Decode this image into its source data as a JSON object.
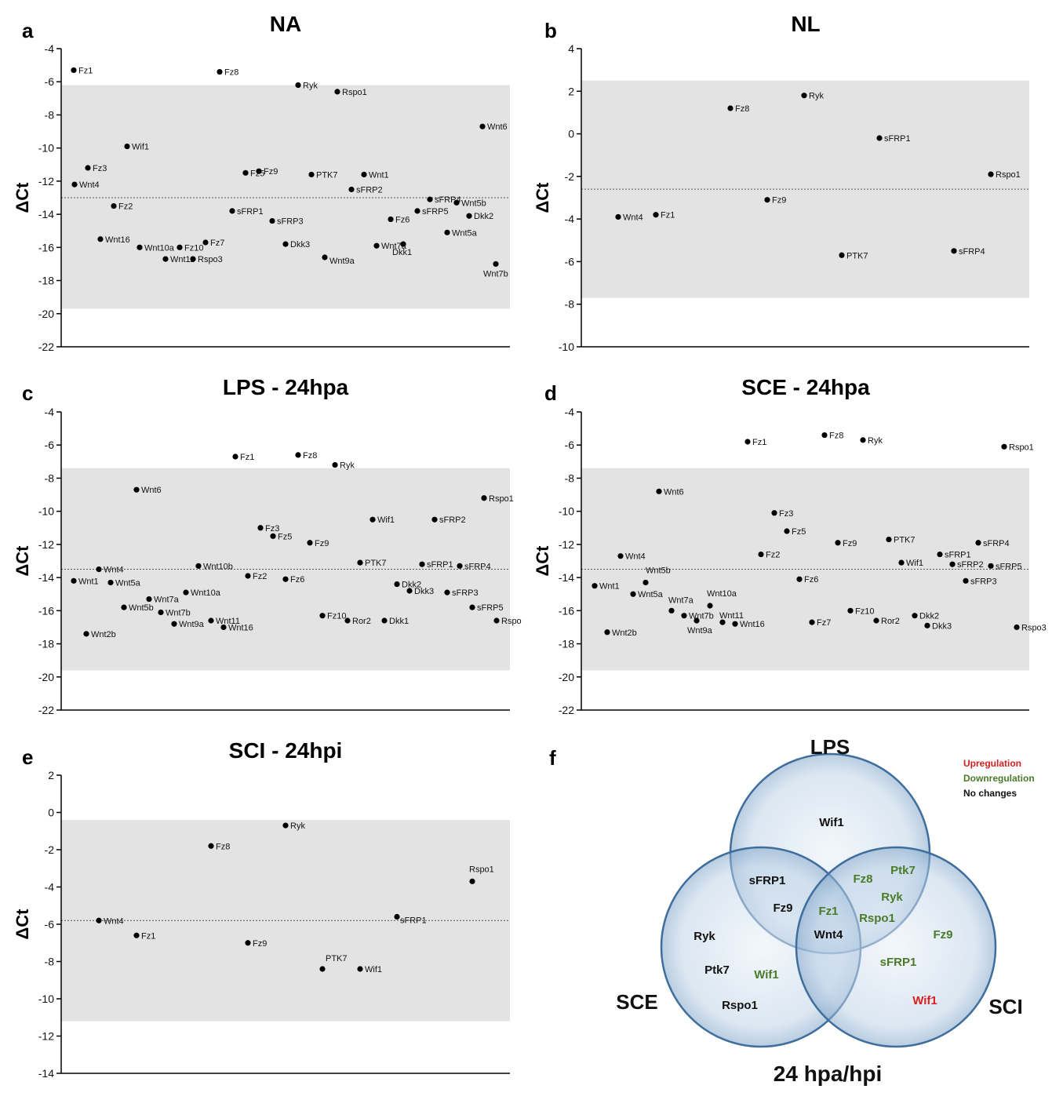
{
  "chart_data": [
    {
      "type": "scatter",
      "panel": "a",
      "title": "NA",
      "ylabel": "ΔCt",
      "ylim": [
        -22,
        -4
      ],
      "yticks": [
        -4,
        -6,
        -8,
        -10,
        -12,
        -14,
        -16,
        -18,
        -20,
        -22
      ],
      "band": [
        -19.7,
        -6.2
      ],
      "mean": -13.0,
      "points": [
        {
          "label": "Fz1",
          "y": -5.3
        },
        {
          "label": "Fz8",
          "y": -5.4
        },
        {
          "label": "Ryk",
          "y": -6.2
        },
        {
          "label": "Rspo1",
          "y": -6.6
        },
        {
          "label": "Wnt6",
          "y": -8.7
        },
        {
          "label": "Wif1",
          "y": -9.9
        },
        {
          "label": "Wnt1",
          "y": -11.6
        },
        {
          "label": "Wnt4",
          "y": -12.2
        },
        {
          "label": "Fz3",
          "y": -11.2
        },
        {
          "label": "Fz5",
          "y": -11.5
        },
        {
          "label": "Fz9",
          "y": -11.4
        },
        {
          "label": "PTK7",
          "y": -11.6
        },
        {
          "label": "sFRP2",
          "y": -12.5
        },
        {
          "label": "sFRP4",
          "y": -13.1
        },
        {
          "label": "Wnt5b",
          "y": -13.3
        },
        {
          "label": "Fz2",
          "y": -13.5
        },
        {
          "label": "sFRP1",
          "y": -13.8
        },
        {
          "label": "sFRP5",
          "y": -13.8
        },
        {
          "label": "Dkk2",
          "y": -14.1
        },
        {
          "label": "Fz6",
          "y": -14.3
        },
        {
          "label": "sFRP3",
          "y": -14.4
        },
        {
          "label": "Wnt5a",
          "y": -15.1
        },
        {
          "label": "Wnt16",
          "y": -15.5
        },
        {
          "label": "Fz7",
          "y": -15.7
        },
        {
          "label": "Dkk3",
          "y": -15.8
        },
        {
          "label": "Dkk1",
          "y": -15.8
        },
        {
          "label": "Wnt7a",
          "y": -15.9
        },
        {
          "label": "Wnt10a",
          "y": -16.0
        },
        {
          "label": "Fz10",
          "y": -16.0
        },
        {
          "label": "Wnt9a",
          "y": -16.6
        },
        {
          "label": "Wnt11",
          "y": -16.7
        },
        {
          "label": "Rspo3",
          "y": -16.7
        },
        {
          "label": "Wnt7b",
          "y": -17.0
        }
      ]
    },
    {
      "type": "scatter",
      "panel": "b",
      "title": "NL",
      "ylabel": "ΔCt",
      "ylim": [
        -10,
        4
      ],
      "yticks": [
        4,
        2,
        0,
        -2,
        -4,
        -6,
        -8,
        -10
      ],
      "band": [
        -7.7,
        2.5
      ],
      "mean": -2.6,
      "points": [
        {
          "label": "Ryk",
          "y": 1.8
        },
        {
          "label": "Fz8",
          "y": 1.2
        },
        {
          "label": "sFRP1",
          "y": -0.2
        },
        {
          "label": "Rspo1",
          "y": -1.9
        },
        {
          "label": "Fz9",
          "y": -3.1
        },
        {
          "label": "Wnt4",
          "y": -3.9
        },
        {
          "label": "Fz1",
          "y": -3.8
        },
        {
          "label": "PTK7",
          "y": -5.7
        },
        {
          "label": "sFRP4",
          "y": -5.5
        }
      ]
    },
    {
      "type": "scatter",
      "panel": "c",
      "title": "LPS - 24hpa",
      "ylabel": "ΔCt",
      "ylim": [
        -22,
        -4
      ],
      "yticks": [
        -4,
        -6,
        -8,
        -10,
        -12,
        -14,
        -16,
        -18,
        -20,
        -22
      ],
      "band": [
        -19.6,
        -7.4
      ],
      "mean": -13.5,
      "points": [
        {
          "label": "Fz1",
          "y": -6.7
        },
        {
          "label": "Fz8",
          "y": -6.6
        },
        {
          "label": "Ryk",
          "y": -7.2
        },
        {
          "label": "Wnt6",
          "y": -8.7
        },
        {
          "label": "Rspo1",
          "y": -9.2
        },
        {
          "label": "Wif1",
          "y": -10.5
        },
        {
          "label": "sFRP2",
          "y": -10.5
        },
        {
          "label": "Fz3",
          "y": -11.0
        },
        {
          "label": "Fz5",
          "y": -11.5
        },
        {
          "label": "Fz9",
          "y": -11.9
        },
        {
          "label": "PTK7",
          "y": -13.1
        },
        {
          "label": "sFRP1",
          "y": -13.2
        },
        {
          "label": "Wnt10b",
          "y": -13.3
        },
        {
          "label": "sFRP4",
          "y": -13.3
        },
        {
          "label": "Wnt4",
          "y": -13.5
        },
        {
          "label": "Fz2",
          "y": -13.9
        },
        {
          "label": "Fz6",
          "y": -14.1
        },
        {
          "label": "Wnt1",
          "y": -14.2
        },
        {
          "label": "Wnt5a",
          "y": -14.3
        },
        {
          "label": "Dkk2",
          "y": -14.4
        },
        {
          "label": "Dkk3",
          "y": -14.8
        },
        {
          "label": "sFRP3",
          "y": -14.9
        },
        {
          "label": "Wnt10a",
          "y": -14.9
        },
        {
          "label": "Wnt7a",
          "y": -15.3
        },
        {
          "label": "Wnt5b",
          "y": -15.8
        },
        {
          "label": "sFRP5",
          "y": -15.8
        },
        {
          "label": "Wnt7b",
          "y": -16.1
        },
        {
          "label": "Fz10",
          "y": -16.3
        },
        {
          "label": "Wnt11",
          "y": -16.6
        },
        {
          "label": "Ror2",
          "y": -16.6
        },
        {
          "label": "Dkk1",
          "y": -16.6
        },
        {
          "label": "Rspo",
          "y": -16.6
        },
        {
          "label": "Wnt9a",
          "y": -16.8
        },
        {
          "label": "Wnt16",
          "y": -17.0
        },
        {
          "label": "Wnt2b",
          "y": -17.4
        }
      ]
    },
    {
      "type": "scatter",
      "panel": "d",
      "title": "SCE - 24hpa",
      "ylabel": "ΔCt",
      "ylim": [
        -22,
        -4
      ],
      "yticks": [
        -4,
        -6,
        -8,
        -10,
        -12,
        -14,
        -16,
        -18,
        -20,
        -22
      ],
      "band": [
        -19.6,
        -7.4
      ],
      "mean": -13.5,
      "points": [
        {
          "label": "Fz8",
          "y": -5.4
        },
        {
          "label": "Ryk",
          "y": -5.7
        },
        {
          "label": "Fz1",
          "y": -5.8
        },
        {
          "label": "Rspo1",
          "y": -6.1
        },
        {
          "label": "Wnt6",
          "y": -8.8
        },
        {
          "label": "Fz3",
          "y": -10.1
        },
        {
          "label": "Fz5",
          "y": -11.2
        },
        {
          "label": "PTK7",
          "y": -11.7
        },
        {
          "label": "Fz9",
          "y": -11.9
        },
        {
          "label": "sFRP4",
          "y": -11.9
        },
        {
          "label": "sFRP1",
          "y": -12.6
        },
        {
          "label": "Fz2",
          "y": -12.6
        },
        {
          "label": "Wnt4",
          "y": -12.7
        },
        {
          "label": "Wif1",
          "y": -13.1
        },
        {
          "label": "sFRP2",
          "y": -13.2
        },
        {
          "label": "sFRP5",
          "y": -13.3
        },
        {
          "label": "Fz6",
          "y": -14.1
        },
        {
          "label": "Wnt5b",
          "y": -14.3
        },
        {
          "label": "sFRP3",
          "y": -14.2
        },
        {
          "label": "Wnt1",
          "y": -14.5
        },
        {
          "label": "Wnt5a",
          "y": -15.0
        },
        {
          "label": "Wnt10a",
          "y": -15.7
        },
        {
          "label": "Fz10",
          "y": -16.0
        },
        {
          "label": "Wnt7a",
          "y": -16.0
        },
        {
          "label": "Wnt7b",
          "y": -16.3
        },
        {
          "label": "Dkk2",
          "y": -16.3
        },
        {
          "label": "Wnt9a",
          "y": -16.6
        },
        {
          "label": "Ror2",
          "y": -16.6
        },
        {
          "label": "Wnt11",
          "y": -16.7
        },
        {
          "label": "Fz7",
          "y": -16.7
        },
        {
          "label": "Wnt16",
          "y": -16.8
        },
        {
          "label": "Dkk3",
          "y": -16.9
        },
        {
          "label": "Rspo3",
          "y": -17.0
        },
        {
          "label": "Wnt2b",
          "y": -17.3
        }
      ]
    },
    {
      "type": "scatter",
      "panel": "e",
      "title": "SCI - 24hpi",
      "ylabel": "ΔCt",
      "ylim": [
        -14,
        2
      ],
      "yticks": [
        2,
        0,
        -2,
        -4,
        -6,
        -8,
        -10,
        -12,
        -14
      ],
      "band": [
        -11.2,
        -0.4
      ],
      "mean": -5.8,
      "points": [
        {
          "label": "Ryk",
          "y": -0.7
        },
        {
          "label": "Fz8",
          "y": -1.8
        },
        {
          "label": "Rspo1",
          "y": -3.7
        },
        {
          "label": "sFRP1",
          "y": -5.6
        },
        {
          "label": "Wnt4",
          "y": -5.8
        },
        {
          "label": "Fz1",
          "y": -6.6
        },
        {
          "label": "Fz9",
          "y": -7.0
        },
        {
          "label": "PTK7",
          "y": -8.4
        },
        {
          "label": "Wif1",
          "y": -8.4
        }
      ]
    }
  ],
  "venn": {
    "panel": "f",
    "sets": {
      "lps": "LPS",
      "sce": "SCE",
      "sci": "SCI"
    },
    "title": "24 hpa/hpi",
    "legend": [
      {
        "label": "Upregulation",
        "color": "#d42020"
      },
      {
        "label": "Downregulation",
        "color": "#4a7a2a"
      },
      {
        "label": "No changes",
        "color": "#111111"
      }
    ],
    "lps_only": [
      {
        "t": "Wif1",
        "c": "#111111"
      }
    ],
    "lps_sce": [
      {
        "t": "sFRP1",
        "c": "#111111"
      },
      {
        "t": "Fz9",
        "c": "#111111"
      }
    ],
    "lps_sci": [
      {
        "t": "Fz8",
        "c": "#4a7a2a"
      },
      {
        "t": "Ptk7",
        "c": "#4a7a2a"
      },
      {
        "t": "Ryk",
        "c": "#4a7a2a"
      },
      {
        "t": "Rspo1",
        "c": "#4a7a2a"
      }
    ],
    "all": [
      {
        "t": "Fz1",
        "c": "#4a7a2a"
      },
      {
        "t": "Wnt4",
        "c": "#111111"
      }
    ],
    "sce_only": [
      {
        "t": "Ryk",
        "c": "#111111"
      },
      {
        "t": "Ptk7",
        "c": "#111111"
      },
      {
        "t": "Wif1",
        "c": "#4a7a2a"
      },
      {
        "t": "Rspo1",
        "c": "#111111"
      }
    ],
    "sci_only": [
      {
        "t": "Fz9",
        "c": "#4a7a2a"
      },
      {
        "t": "sFRP1",
        "c": "#4a7a2a"
      },
      {
        "t": "Wif1",
        "c": "#d42020"
      }
    ]
  }
}
